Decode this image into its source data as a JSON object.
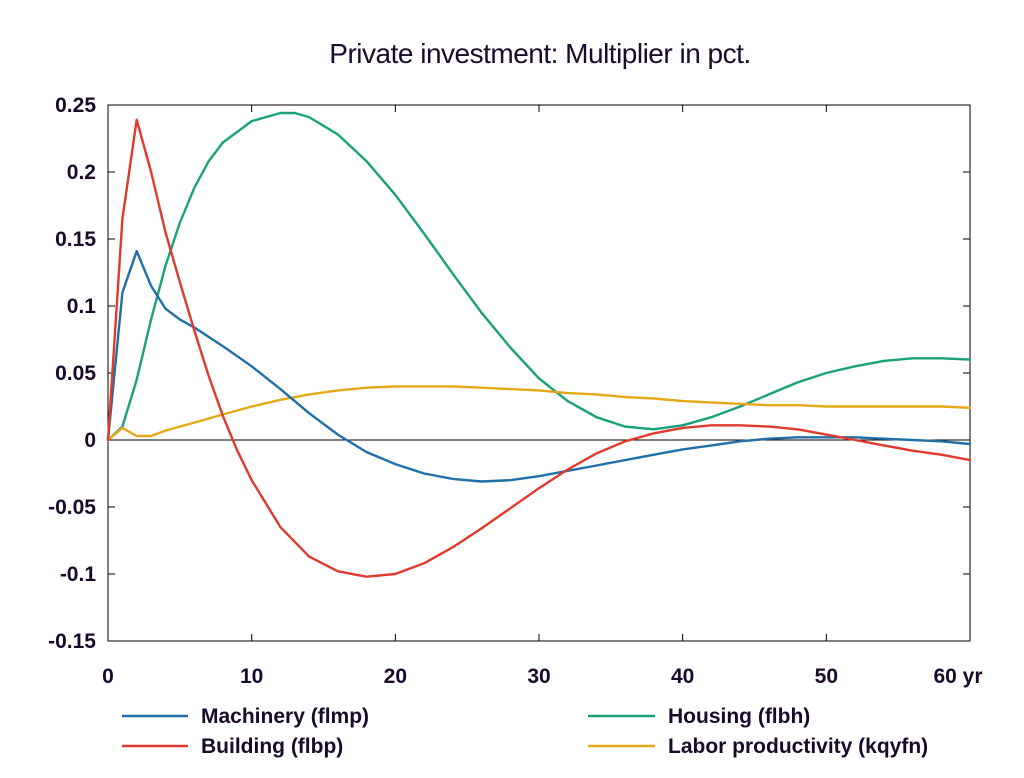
{
  "chart_data": {
    "type": "line",
    "title": "Private investment: Multiplier in pct.",
    "xlabel": "",
    "ylabel": "",
    "xlim": [
      0,
      60
    ],
    "ylim": [
      -0.15,
      0.25
    ],
    "x_ticks": [
      0,
      10,
      20,
      30,
      40,
      50,
      60
    ],
    "x_tick_labels": [
      "0",
      "10",
      "20",
      "30",
      "40",
      "50",
      "60 yr"
    ],
    "y_ticks": [
      0.25,
      0.2,
      0.15,
      0.1,
      0.05,
      0,
      -0.05,
      -0.1,
      -0.15
    ],
    "y_tick_labels": [
      "0.25",
      "0.2",
      "0.15",
      "0.1",
      "0.05",
      "0",
      "-0.05",
      "-0.1",
      "-0.15"
    ],
    "zero_line": true,
    "grid": false,
    "legend_position": "bottom",
    "series": [
      {
        "name": "Machinery (flmp)",
        "color": "#1f6fa8",
        "points": [
          [
            0,
            0
          ],
          [
            1,
            0.11
          ],
          [
            2,
            0.141
          ],
          [
            3,
            0.115
          ],
          [
            4,
            0.098
          ],
          [
            5,
            0.09
          ],
          [
            6,
            0.084
          ],
          [
            8,
            0.07
          ],
          [
            10,
            0.055
          ],
          [
            12,
            0.038
          ],
          [
            14,
            0.02
          ],
          [
            16,
            0.004
          ],
          [
            18,
            -0.009
          ],
          [
            20,
            -0.018
          ],
          [
            22,
            -0.025
          ],
          [
            24,
            -0.029
          ],
          [
            26,
            -0.031
          ],
          [
            28,
            -0.03
          ],
          [
            30,
            -0.027
          ],
          [
            32,
            -0.023
          ],
          [
            34,
            -0.019
          ],
          [
            36,
            -0.015
          ],
          [
            38,
            -0.011
          ],
          [
            40,
            -0.007
          ],
          [
            42,
            -0.004
          ],
          [
            44,
            -0.001
          ],
          [
            46,
            0.001
          ],
          [
            48,
            0.002
          ],
          [
            50,
            0.002
          ],
          [
            52,
            0.002
          ],
          [
            54,
            0.001
          ],
          [
            56,
            0
          ],
          [
            58,
            -0.001
          ],
          [
            60,
            -0.003
          ]
        ]
      },
      {
        "name": "Building (flbp)",
        "color": "#e03a2c",
        "points": [
          [
            0,
            0
          ],
          [
            1,
            0.165
          ],
          [
            2,
            0.239
          ],
          [
            3,
            0.2
          ],
          [
            4,
            0.155
          ],
          [
            5,
            0.118
          ],
          [
            6,
            0.082
          ],
          [
            7,
            0.048
          ],
          [
            8,
            0.018
          ],
          [
            9,
            -0.008
          ],
          [
            10,
            -0.03
          ],
          [
            12,
            -0.065
          ],
          [
            14,
            -0.087
          ],
          [
            16,
            -0.098
          ],
          [
            18,
            -0.102
          ],
          [
            20,
            -0.1
          ],
          [
            22,
            -0.092
          ],
          [
            24,
            -0.08
          ],
          [
            26,
            -0.066
          ],
          [
            28,
            -0.051
          ],
          [
            30,
            -0.036
          ],
          [
            32,
            -0.022
          ],
          [
            34,
            -0.01
          ],
          [
            36,
            -0.001
          ],
          [
            38,
            0.005
          ],
          [
            40,
            0.009
          ],
          [
            42,
            0.011
          ],
          [
            44,
            0.011
          ],
          [
            46,
            0.01
          ],
          [
            48,
            0.008
          ],
          [
            50,
            0.004
          ],
          [
            52,
            0
          ],
          [
            54,
            -0.004
          ],
          [
            56,
            -0.008
          ],
          [
            58,
            -0.011
          ],
          [
            60,
            -0.015
          ]
        ]
      },
      {
        "name": "Housing (flbh)",
        "color": "#1aa07a",
        "points": [
          [
            0,
            0
          ],
          [
            1,
            0.01
          ],
          [
            2,
            0.045
          ],
          [
            3,
            0.09
          ],
          [
            4,
            0.13
          ],
          [
            5,
            0.162
          ],
          [
            6,
            0.188
          ],
          [
            7,
            0.208
          ],
          [
            8,
            0.222
          ],
          [
            10,
            0.238
          ],
          [
            12,
            0.244
          ],
          [
            13,
            0.244
          ],
          [
            14,
            0.241
          ],
          [
            16,
            0.228
          ],
          [
            18,
            0.208
          ],
          [
            20,
            0.183
          ],
          [
            22,
            0.154
          ],
          [
            24,
            0.124
          ],
          [
            26,
            0.095
          ],
          [
            28,
            0.069
          ],
          [
            30,
            0.046
          ],
          [
            32,
            0.029
          ],
          [
            34,
            0.017
          ],
          [
            36,
            0.01
          ],
          [
            38,
            0.008
          ],
          [
            40,
            0.011
          ],
          [
            42,
            0.017
          ],
          [
            44,
            0.025
          ],
          [
            46,
            0.034
          ],
          [
            48,
            0.043
          ],
          [
            50,
            0.05
          ],
          [
            52,
            0.055
          ],
          [
            54,
            0.059
          ],
          [
            56,
            0.061
          ],
          [
            58,
            0.061
          ],
          [
            60,
            0.06
          ]
        ]
      },
      {
        "name": "Labor productivity (kqyfn)",
        "color": "#e6a817",
        "points": [
          [
            0,
            0
          ],
          [
            1,
            0.009
          ],
          [
            2,
            0.003
          ],
          [
            3,
            0.003
          ],
          [
            4,
            0.007
          ],
          [
            6,
            0.013
          ],
          [
            8,
            0.019
          ],
          [
            10,
            0.025
          ],
          [
            12,
            0.03
          ],
          [
            14,
            0.034
          ],
          [
            16,
            0.037
          ],
          [
            18,
            0.039
          ],
          [
            20,
            0.04
          ],
          [
            22,
            0.04
          ],
          [
            24,
            0.04
          ],
          [
            26,
            0.039
          ],
          [
            28,
            0.038
          ],
          [
            30,
            0.037
          ],
          [
            32,
            0.035
          ],
          [
            34,
            0.034
          ],
          [
            36,
            0.032
          ],
          [
            38,
            0.031
          ],
          [
            40,
            0.029
          ],
          [
            42,
            0.028
          ],
          [
            44,
            0.027
          ],
          [
            46,
            0.026
          ],
          [
            48,
            0.026
          ],
          [
            50,
            0.025
          ],
          [
            52,
            0.025
          ],
          [
            54,
            0.025
          ],
          [
            56,
            0.025
          ],
          [
            58,
            0.025
          ],
          [
            60,
            0.024
          ]
        ]
      }
    ]
  }
}
